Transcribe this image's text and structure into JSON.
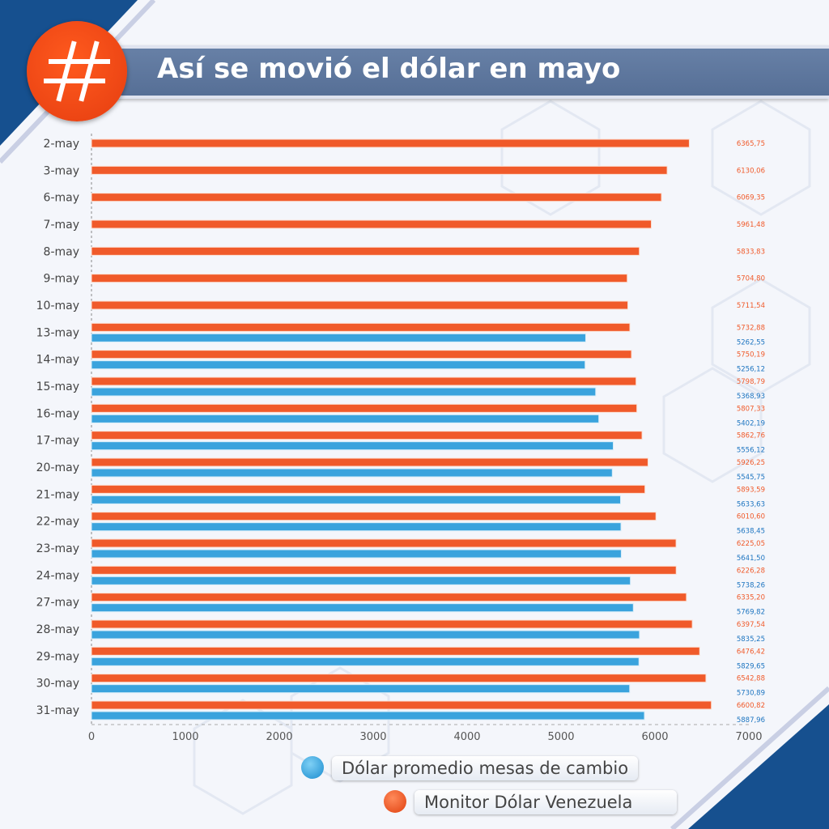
{
  "header": {
    "title": "Así se movió el dólar en mayo",
    "badge_icon": "hashtag-icon"
  },
  "colors": {
    "monitor": "#f05a2a",
    "mesas": "#3aa3dd",
    "monitor_label": "#f05a2a",
    "mesas_label": "#1c74c0",
    "banner": "#5a7398",
    "badge": "#f04714"
  },
  "chart_data": {
    "type": "bar",
    "orientation": "horizontal",
    "title": "Así se movió el dólar en mayo",
    "categories": [
      "2-may",
      "3-may",
      "6-may",
      "7-may",
      "8-may",
      "9-may",
      "10-may",
      "13-may",
      "14-may",
      "15-may",
      "16-may",
      "17-may",
      "20-may",
      "21-may",
      "22-may",
      "23-may",
      "24-may",
      "27-may",
      "28-may",
      "29-may",
      "30-may",
      "31-may"
    ],
    "series": [
      {
        "name": "Monitor Dólar Venezuela",
        "values": [
          6365.75,
          6130.06,
          6069.35,
          5961.48,
          5833.83,
          5704.8,
          5711.54,
          5732.88,
          5750.19,
          5798.79,
          5807.33,
          5862.76,
          5926.25,
          5893.59,
          6010.6,
          6225.05,
          6226.28,
          6335.2,
          6397.54,
          6476.42,
          6542.88,
          6600.82
        ],
        "labels": [
          "6365,75",
          "6130,06",
          "6069,35",
          "5961,48",
          "5833,83",
          "5704,80",
          "5711,54",
          "5732,88",
          "5750,19",
          "5798,79",
          "5807,33",
          "5862,76",
          "5926,25",
          "5893,59",
          "6010,60",
          "6225,05",
          "6226,28",
          "6335,20",
          "6397,54",
          "6476,42",
          "6542,88",
          "6600,82"
        ]
      },
      {
        "name": "Dólar promedio mesas de cambio",
        "values": [
          null,
          null,
          null,
          null,
          null,
          null,
          null,
          5262.55,
          5256.12,
          5368.93,
          5402.19,
          5556.12,
          5545.75,
          5633.63,
          5638.45,
          5641.5,
          5738.26,
          5769.82,
          5835.25,
          5829.65,
          5730.89,
          5887.96
        ],
        "labels": [
          null,
          null,
          null,
          null,
          null,
          null,
          null,
          "5262,55",
          "5256,12",
          "5368,93",
          "5402,19",
          "5556,12",
          "5545,75",
          "5633,63",
          "5638,45",
          "5641,50",
          "5738,26",
          "5769,82",
          "5835,25",
          "5829,65",
          "5730,89",
          "5887,96"
        ]
      }
    ],
    "xlim": [
      0,
      7000
    ],
    "xticks": [
      "0",
      "1000",
      "2000",
      "3000",
      "4000",
      "5000",
      "6000",
      "7000"
    ],
    "legend": [
      "Dólar promedio mesas de cambio",
      "Monitor Dólar Venezuela"
    ],
    "legend_placement": "bottom-right"
  }
}
